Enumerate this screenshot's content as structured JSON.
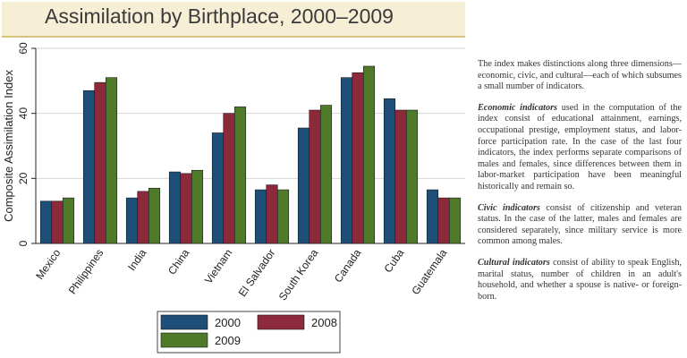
{
  "chart_data": {
    "type": "bar",
    "title": "Assimilation by Birthplace, 2000–2009",
    "ylabel": "Composite Assimilation Index",
    "xlabel": "",
    "ylim": [
      0,
      60
    ],
    "yticks": [
      0,
      20,
      40,
      60
    ],
    "categories": [
      "Mexico",
      "Philippines",
      "India",
      "China",
      "Vietnam",
      "El Salvador",
      "South Korea",
      "Canada",
      "Cuba",
      "Guatemala"
    ],
    "series": [
      {
        "name": "2000",
        "color": "#1f4e79",
        "values": [
          13,
          47,
          14,
          22,
          34,
          16.5,
          35.5,
          51,
          44.5,
          16.5
        ]
      },
      {
        "name": "2008",
        "color": "#8c2a3c",
        "values": [
          13,
          49.5,
          16,
          21.5,
          40,
          18,
          41,
          52.5,
          41,
          14
        ]
      },
      {
        "name": "2009",
        "color": "#4e7a2a",
        "values": [
          14,
          51,
          17,
          22.5,
          42,
          16.5,
          42.5,
          54.5,
          41,
          14
        ]
      }
    ],
    "grid": true,
    "legend_position": "bottom"
  },
  "side_text": {
    "intro": "The index makes distinctions along three dimensions—economic, civic, and cultural—each of which subsumes a small number of indicators.",
    "economic_lead": "Economic indicators",
    "economic_body": " used in the computation of the index consist of educational attainment, earnings, occupational prestige, employment status, and labor-force participation rate. In the case of the last four indicators, the index performs separate comparisons of males and females, since differences between them in labor-market participation have been meaningful historically and remain so.",
    "civic_lead": "Civic indicators",
    "civic_body": " consist of citizenship and veteran status. In the case of the latter, males and females are considered separately, since military service is more common among males.",
    "cultural_lead": "Cultural indicators",
    "cultural_body": " consist of ability to speak English, marital status, number of children in an adult's household, and whether a spouse is native- or foreign-born."
  }
}
